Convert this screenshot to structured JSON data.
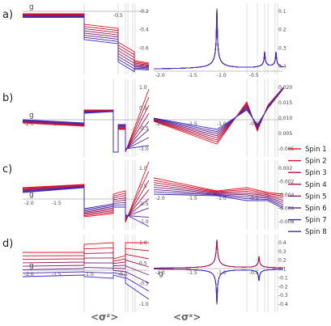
{
  "figure": {
    "bottom_labels": {
      "left": "<σᶻ>",
      "right": "<σˣ>"
    }
  },
  "chart_data": [
    {
      "panel": "a",
      "type": "line",
      "label": "a)",
      "quantity": "sigma_z",
      "xlabel": "g",
      "xlim": [
        -2.0,
        0.0
      ],
      "x_ticks": [
        "-0.5"
      ],
      "y_ticks": [
        "-0.2",
        "-0.4",
        "-0.6",
        "-0.8"
      ],
      "ylim": [
        -0.9,
        0.0
      ],
      "series": [
        {
          "name": "Spin 1"
        },
        {
          "name": "Spin 2"
        },
        {
          "name": "Spin 3"
        },
        {
          "name": "Spin 4"
        },
        {
          "name": "Spin 5"
        },
        {
          "name": "Spin 6"
        },
        {
          "name": "Spin 7"
        },
        {
          "name": "Spin 8"
        }
      ]
    },
    {
      "panel": "a",
      "type": "line",
      "quantity": "sigma_x",
      "xlim": [
        -2.0,
        0.0
      ],
      "x_ticks": [
        "-2.0",
        "-1.5",
        "-1.0",
        "-0.5"
      ],
      "y_ticks": [
        "0.1",
        "0.2",
        "0.3",
        "0.4"
      ],
      "ylim": [
        0.0,
        0.42
      ]
    },
    {
      "panel": "b",
      "type": "line",
      "label": "b)",
      "quantity": "sigma_z",
      "xlabel": "g",
      "xlim": [
        -2.0,
        0.0
      ],
      "x_ticks": [
        "-2.0",
        "-1.5"
      ],
      "y_ticks": [
        "1.0",
        "0.5",
        "-0.5",
        "-1.0"
      ],
      "ylim": [
        -1.0,
        1.0
      ]
    },
    {
      "panel": "b",
      "type": "line",
      "quantity": "sigma_x",
      "xlim": [
        -2.0,
        0.0
      ],
      "x_ticks": [
        "-2.0",
        "-1.5",
        "-1.0",
        "-0.5"
      ],
      "y_ticks": [
        "0.020",
        "0.015",
        "0.010",
        "0.005",
        "-0.005"
      ],
      "ylim": [
        -0.007,
        0.025
      ]
    },
    {
      "panel": "c",
      "type": "line",
      "label": "c)",
      "quantity": "sigma_z",
      "xlabel": "g",
      "xlim": [
        -2.0,
        0.0
      ],
      "x_ticks": [
        "-2.0",
        "-1.5"
      ],
      "y_ticks": [
        "1.0",
        "0.5",
        "-0.5",
        "-1.0"
      ],
      "ylim": [
        -1.0,
        1.0
      ]
    },
    {
      "panel": "c",
      "type": "line",
      "quantity": "sigma_x",
      "xlim": [
        -2.0,
        0.0
      ],
      "x_ticks": [
        "-2.0",
        "-1.5",
        "-1.0",
        "-0.5"
      ],
      "y_ticks": [
        "0.002",
        "-0.002",
        "-0.004",
        "-0.006",
        "-0.008"
      ],
      "ylim": [
        -0.009,
        0.003
      ]
    },
    {
      "panel": "d",
      "type": "line",
      "label": "d)",
      "quantity": "sigma_z",
      "xlabel": "g",
      "xlim": [
        -2.0,
        0.0
      ],
      "x_ticks": [
        "-2.0",
        "-1.5",
        "-1.0",
        "-0.5"
      ],
      "y_ticks": [
        "1.0",
        "0.5",
        "-0.5",
        "-1.0"
      ],
      "ylim": [
        -1.0,
        1.0
      ]
    },
    {
      "panel": "d",
      "type": "line",
      "quantity": "sigma_x",
      "xlabel": "g",
      "xlim": [
        -2.0,
        0.0
      ],
      "x_ticks": [
        "-2.0",
        "-1.5",
        "-1.0",
        "-0.5"
      ],
      "y_ticks": [
        "0.4",
        "0.3",
        "0.2",
        "0.1",
        "-0.1",
        "-0.2",
        "-0.3",
        "-0.4"
      ],
      "ylim": [
        -0.4,
        0.4
      ]
    }
  ],
  "legend": {
    "entries": [
      "Spin 1",
      "Spin 2",
      "Spin 3",
      "Spin 4",
      "Spin 5",
      "Spin 6",
      "Spin 7",
      "Spin 8"
    ],
    "colors": [
      "#e8141c",
      "#d0142e",
      "#b81642",
      "#9c1a58",
      "#7e1e70",
      "#62238a",
      "#4a28a4",
      "#3a2cc4"
    ]
  }
}
